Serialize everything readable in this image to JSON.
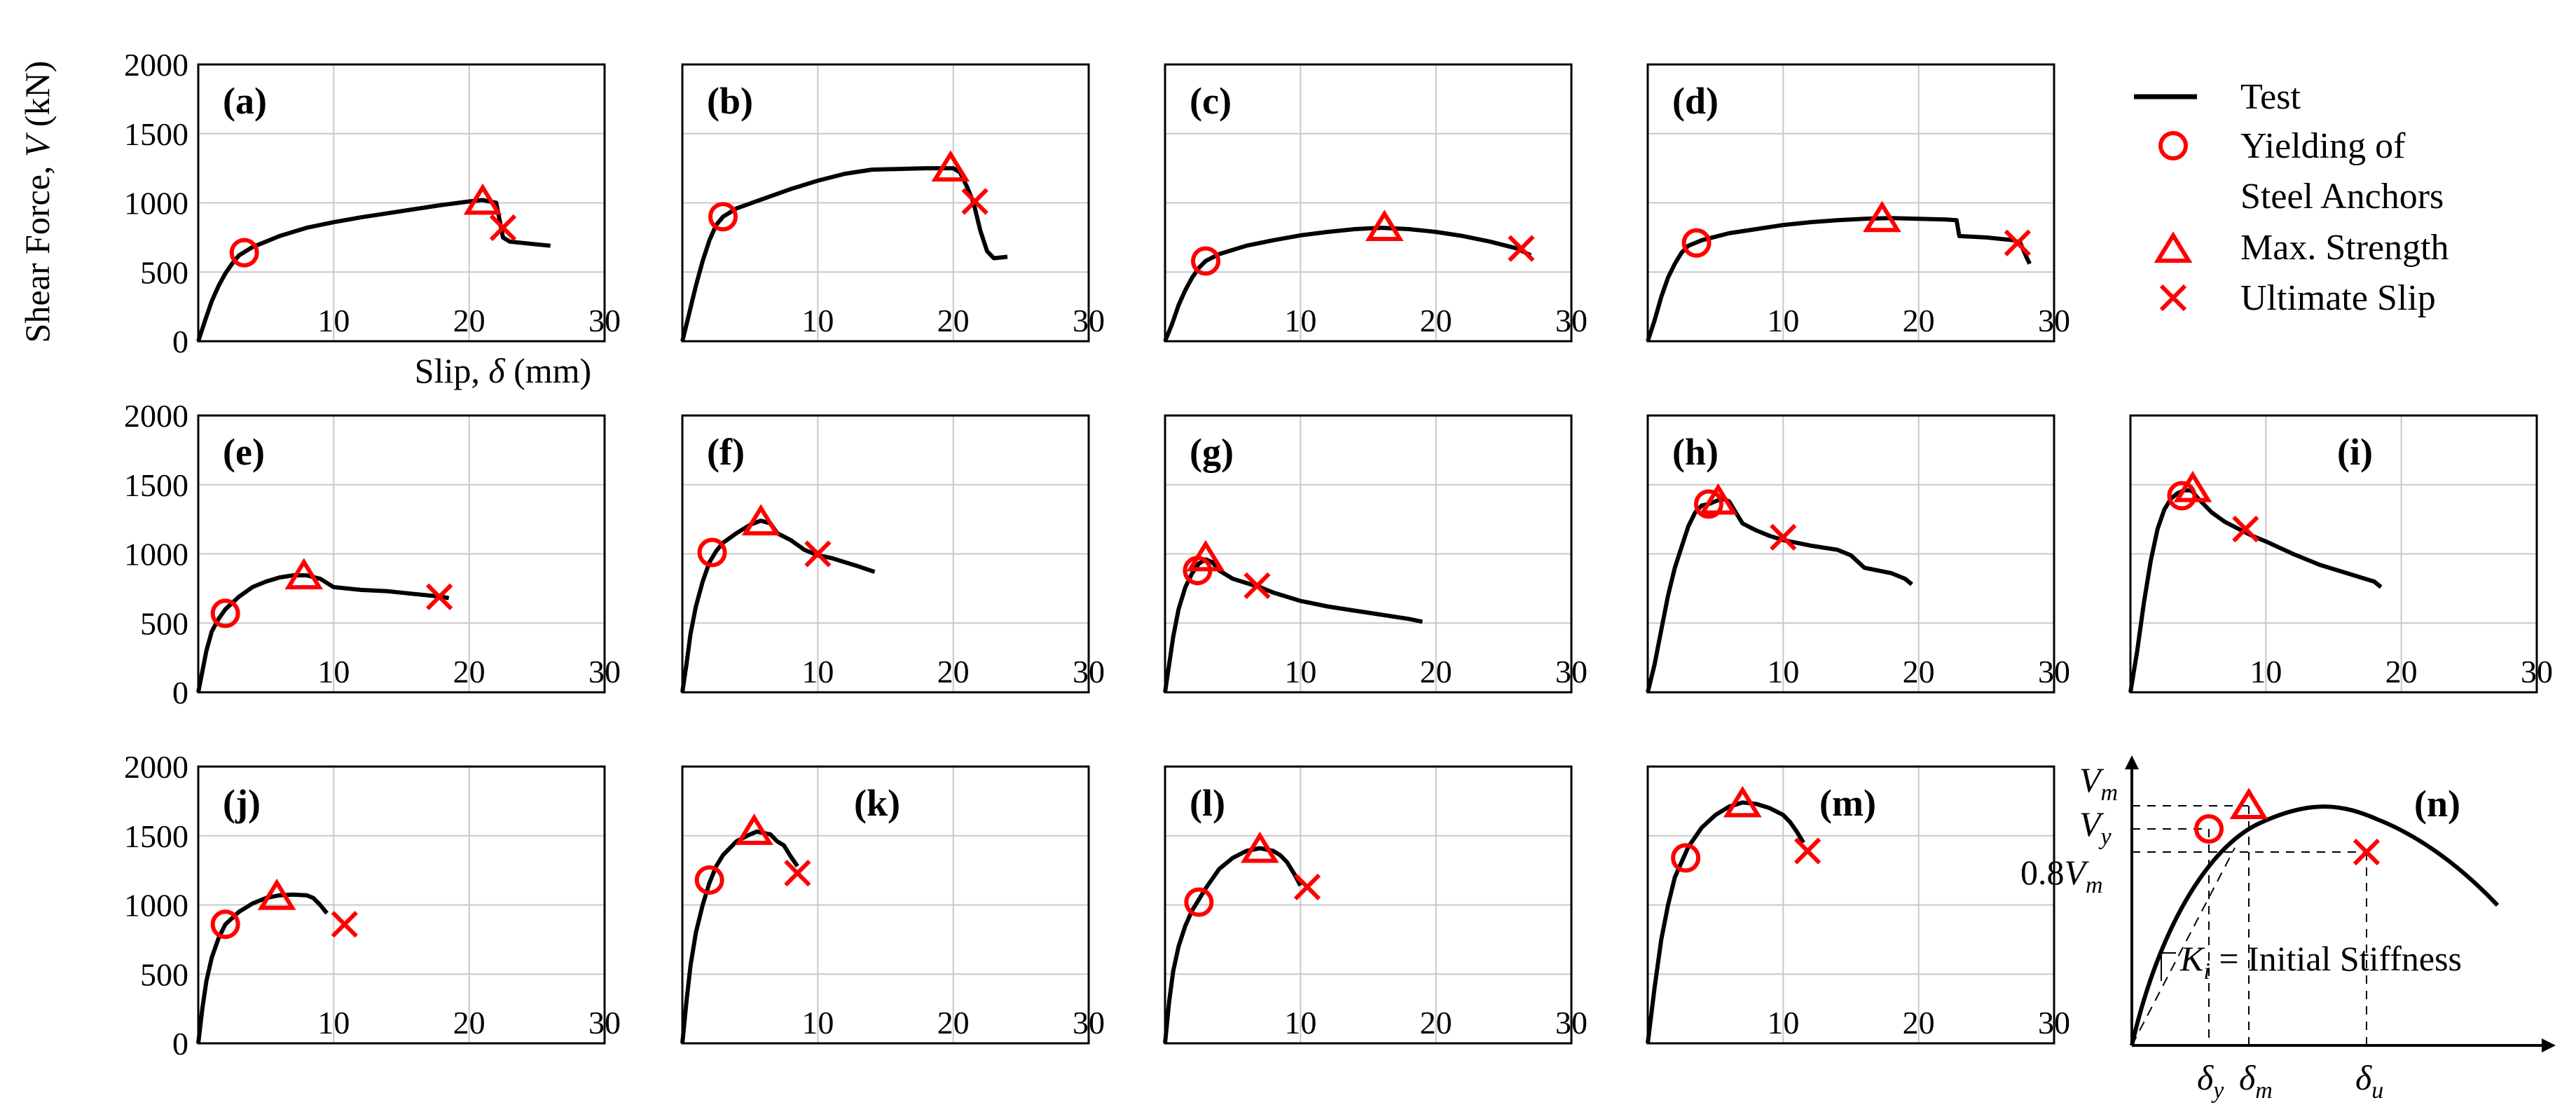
{
  "colors": {
    "curve": "#000000",
    "marker": "#ff0000",
    "grid": "#c8c8c8"
  },
  "axes": {
    "ylabel_prefix": "Shear Force, ",
    "ylabel_var": "V",
    "ylabel_suffix": " (kN)",
    "xlabel_prefix": "Slip, ",
    "xlabel_var": "δ",
    "xlabel_suffix": " (mm)",
    "y_ticks": [
      "0",
      "500",
      "1000",
      "1500",
      "2000"
    ],
    "x_ticks": [
      "10",
      "20",
      "30"
    ]
  },
  "legend": {
    "test": "Test",
    "yield_line1": "Yielding of",
    "yield_line2": "Steel Anchors",
    "max": "Max. Strength",
    "ult": "Ultimate Slip"
  },
  "chart_data": [
    {
      "type": "line",
      "label": "(a)",
      "xlim": [
        0,
        30
      ],
      "ylim": [
        0,
        2000
      ],
      "x": [
        0,
        0.5,
        1,
        1.5,
        2,
        2.5,
        3,
        4,
        5,
        6,
        8,
        10,
        12,
        14,
        16,
        18,
        20,
        21,
        22,
        22.2,
        22.5,
        23,
        24,
        25,
        26
      ],
      "y": [
        0,
        150,
        290,
        400,
        490,
        560,
        620,
        680,
        720,
        760,
        820,
        860,
        895,
        925,
        955,
        985,
        1010,
        1020,
        1000,
        900,
        750,
        720,
        710,
        700,
        690
      ],
      "yield": [
        3.4,
        640
      ],
      "max": [
        21,
        1010
      ],
      "ult": [
        22.5,
        820
      ]
    },
    {
      "type": "line",
      "label": "(b)",
      "xlim": [
        0,
        30
      ],
      "ylim": [
        0,
        2000
      ],
      "x": [
        0,
        0.5,
        1,
        1.5,
        2,
        2.5,
        3,
        4,
        6,
        8,
        10,
        12,
        14,
        16,
        18,
        19,
        20,
        20.5,
        21,
        21.5,
        22,
        22.5,
        23,
        24
      ],
      "y": [
        0,
        200,
        400,
        580,
        730,
        840,
        900,
        960,
        1030,
        1100,
        1160,
        1210,
        1240,
        1245,
        1250,
        1250,
        1250,
        1220,
        1120,
        1000,
        800,
        650,
        600,
        610
      ],
      "yield": [
        3,
        900
      ],
      "max": [
        19.8,
        1250
      ],
      "ult": [
        21.6,
        1010
      ]
    },
    {
      "type": "line",
      "label": "(c)",
      "xlim": [
        0,
        30
      ],
      "ylim": [
        0,
        2000
      ],
      "x": [
        0,
        0.5,
        1,
        1.5,
        2,
        2.5,
        3,
        4,
        6,
        8,
        10,
        12,
        14,
        16,
        18,
        20,
        22,
        24,
        26,
        27
      ],
      "y": [
        0,
        120,
        260,
        370,
        460,
        530,
        580,
        630,
        690,
        730,
        765,
        790,
        810,
        820,
        810,
        790,
        760,
        720,
        670,
        620
      ],
      "yield": [
        3,
        580
      ],
      "max": [
        16.2,
        820
      ],
      "ult": [
        26.3,
        670
      ]
    },
    {
      "type": "line",
      "label": "(d)",
      "xlim": [
        0,
        30
      ],
      "ylim": [
        0,
        2000
      ],
      "x": [
        0,
        0.5,
        1,
        1.5,
        2,
        2.5,
        3,
        4,
        6,
        8,
        10,
        12,
        14,
        16,
        18,
        20,
        22,
        22.8,
        23,
        25,
        27,
        27.5,
        28,
        28.2
      ],
      "y": [
        0,
        150,
        320,
        460,
        560,
        640,
        690,
        730,
        780,
        810,
        840,
        860,
        875,
        885,
        890,
        885,
        880,
        875,
        760,
        750,
        730,
        710,
        600,
        560
      ],
      "yield": [
        3.6,
        710
      ],
      "max": [
        17.3,
        885
      ],
      "ult": [
        27.3,
        710
      ]
    },
    {
      "type": "line",
      "label": "(e)",
      "xlim": [
        0,
        30
      ],
      "ylim": [
        0,
        2000
      ],
      "x": [
        0,
        0.3,
        0.6,
        1,
        1.5,
        2,
        3,
        4,
        5,
        6,
        7,
        8,
        9,
        10,
        12,
        14,
        16,
        18,
        18.5
      ],
      "y": [
        0,
        150,
        300,
        440,
        530,
        600,
        690,
        760,
        800,
        830,
        845,
        845,
        820,
        760,
        740,
        730,
        710,
        690,
        680
      ],
      "yield": [
        2,
        570
      ],
      "max": [
        7.8,
        840
      ],
      "ult": [
        17.8,
        690
      ]
    },
    {
      "type": "line",
      "label": "(f)",
      "xlim": [
        0,
        30
      ],
      "ylim": [
        0,
        2000
      ],
      "x": [
        0,
        0.3,
        0.6,
        1,
        1.5,
        2,
        2.5,
        3,
        4,
        5,
        5.8,
        6.5,
        7,
        8,
        9,
        10,
        11,
        12,
        13,
        14.2
      ],
      "y": [
        0,
        200,
        420,
        620,
        800,
        940,
        1020,
        1080,
        1150,
        1210,
        1240,
        1220,
        1150,
        1100,
        1030,
        990,
        970,
        940,
        910,
        870
      ],
      "yield": [
        2.2,
        1010
      ],
      "max": [
        5.8,
        1230
      ],
      "ult": [
        10,
        1000
      ]
    },
    {
      "type": "line",
      "label": "(g)",
      "xlim": [
        0,
        30
      ],
      "ylim": [
        0,
        2000
      ],
      "x": [
        0,
        0.3,
        0.6,
        1,
        1.5,
        2,
        2.5,
        3,
        3.5,
        4,
        5,
        6,
        7,
        8,
        10,
        12,
        14,
        16,
        18,
        19
      ],
      "y": [
        0,
        200,
        400,
        600,
        760,
        860,
        930,
        960,
        940,
        880,
        820,
        790,
        760,
        720,
        660,
        620,
        590,
        560,
        530,
        510
      ],
      "yield": [
        2.4,
        880
      ],
      "max": [
        3,
        970
      ],
      "ult": [
        6.8,
        770
      ]
    },
    {
      "type": "line",
      "label": "(h)",
      "xlim": [
        0,
        30
      ],
      "ylim": [
        0,
        2000
      ],
      "x": [
        0,
        0.5,
        1,
        1.5,
        2,
        2.5,
        3,
        3.5,
        4,
        4.5,
        5,
        5.5,
        6,
        6.5,
        7,
        8,
        9,
        10,
        12,
        14,
        15,
        16,
        17,
        18,
        19,
        19.5
      ],
      "y": [
        0,
        200,
        450,
        700,
        900,
        1050,
        1200,
        1300,
        1350,
        1360,
        1380,
        1400,
        1380,
        1300,
        1220,
        1170,
        1130,
        1100,
        1060,
        1030,
        990,
        900,
        880,
        860,
        820,
        780
      ],
      "yield": [
        4.5,
        1360
      ],
      "max": [
        5.2,
        1380
      ],
      "ult": [
        10,
        1120
      ]
    },
    {
      "type": "line",
      "label": "(i)",
      "xlim": [
        0,
        30
      ],
      "ylim": [
        0,
        2000
      ],
      "x": [
        0,
        0.5,
        1,
        1.5,
        2,
        2.5,
        3,
        3.5,
        4,
        4.5,
        5,
        6,
        7,
        8,
        9,
        10,
        12,
        14,
        16,
        18,
        18.5
      ],
      "y": [
        0,
        300,
        650,
        950,
        1180,
        1320,
        1400,
        1440,
        1460,
        1460,
        1400,
        1300,
        1230,
        1180,
        1130,
        1090,
        1000,
        920,
        860,
        800,
        760
      ],
      "yield": [
        3.8,
        1420
      ],
      "max": [
        4.6,
        1470
      ],
      "ult": [
        8.5,
        1180
      ]
    },
    {
      "type": "line",
      "label": "(j)",
      "xlim": [
        0,
        30
      ],
      "ylim": [
        0,
        2000
      ],
      "x": [
        0,
        0.3,
        0.6,
        1,
        1.5,
        2,
        3,
        4,
        5,
        6,
        7,
        8,
        8.5,
        9,
        9.5
      ],
      "y": [
        0,
        250,
        450,
        620,
        760,
        860,
        950,
        1010,
        1050,
        1070,
        1075,
        1070,
        1050,
        1000,
        940
      ],
      "yield": [
        2,
        860
      ],
      "max": [
        5.8,
        1060
      ],
      "ult": [
        10.8,
        860
      ]
    },
    {
      "type": "line",
      "label": "(k)",
      "xlim": [
        0,
        30
      ],
      "ylim": [
        0,
        2000
      ],
      "x": [
        0,
        0.3,
        0.6,
        1,
        1.5,
        2,
        2.5,
        3,
        4,
        5,
        5.5,
        6,
        6.5,
        7,
        7.5,
        8,
        8.5
      ],
      "y": [
        0,
        300,
        560,
        800,
        1000,
        1160,
        1280,
        1360,
        1460,
        1510,
        1530,
        1520,
        1510,
        1460,
        1430,
        1350,
        1280
      ],
      "yield": [
        2,
        1180
      ],
      "max": [
        5.3,
        1530
      ],
      "ult": [
        8.5,
        1230
      ]
    },
    {
      "type": "line",
      "label": "(l)",
      "xlim": [
        0,
        30
      ],
      "ylim": [
        0,
        2000
      ],
      "x": [
        0,
        0.3,
        0.6,
        1,
        1.5,
        2,
        3,
        4,
        5,
        6,
        7,
        8,
        8.5,
        9,
        9.5,
        10
      ],
      "y": [
        0,
        300,
        520,
        700,
        850,
        960,
        1120,
        1260,
        1340,
        1390,
        1410,
        1390,
        1360,
        1310,
        1230,
        1140
      ],
      "yield": [
        2.5,
        1020
      ],
      "max": [
        7,
        1400
      ],
      "ult": [
        10.5,
        1130
      ]
    },
    {
      "type": "line",
      "label": "(m)",
      "xlim": [
        0,
        30
      ],
      "ylim": [
        0,
        2000
      ],
      "x": [
        0,
        0.5,
        1,
        1.5,
        2,
        3,
        4,
        5,
        6,
        7,
        8,
        9,
        10,
        10.5,
        11,
        11.5
      ],
      "y": [
        0,
        400,
        750,
        1000,
        1200,
        1420,
        1560,
        1650,
        1710,
        1740,
        1730,
        1700,
        1650,
        1600,
        1530,
        1450
      ],
      "yield": [
        2.8,
        1340
      ],
      "max": [
        7,
        1730
      ],
      "ult": [
        11.8,
        1390
      ]
    }
  ],
  "schematic": {
    "label": "(n)",
    "vm": "V",
    "vm_sub": "m",
    "vy": "V",
    "vy_sub": "y",
    "v08_num": "0.8",
    "v08_var": "V",
    "v08_sub": "m",
    "ki": "K",
    "ki_sub": "i",
    "ki_text": " = Initial Stiffness",
    "dy": "δ",
    "dy_sub": "y",
    "dm": "δ",
    "dm_sub": "m",
    "du": "δ",
    "du_sub": "u"
  }
}
